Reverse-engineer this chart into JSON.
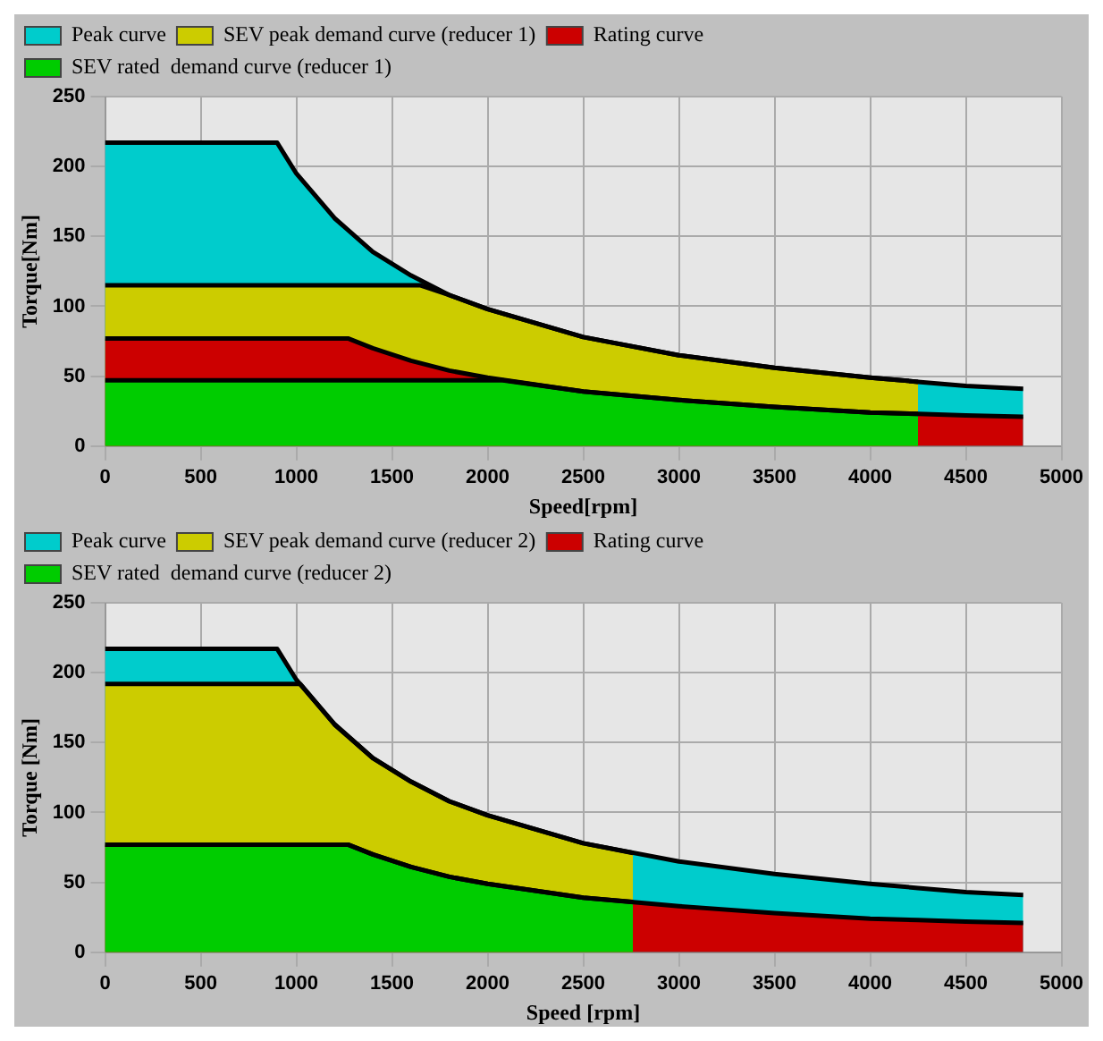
{
  "chart_data": [
    {
      "type": "area",
      "xlabel": "Speed[rpm]",
      "ylabel": "Torque[Nm]",
      "xlim": [
        0,
        5000
      ],
      "ylim": [
        0,
        250
      ],
      "xticks": [
        0,
        500,
        1000,
        1500,
        2000,
        2500,
        3000,
        3500,
        4000,
        4500,
        5000
      ],
      "yticks": [
        0,
        50,
        100,
        150,
        200,
        250
      ],
      "grid": true,
      "legend": "top left",
      "series": [
        {
          "name": "Peak curve",
          "color": "#00cccc",
          "x": [
            0,
            900,
            1000,
            1200,
            1400,
            1600,
            1800,
            2000,
            2500,
            3000,
            3500,
            4000,
            4250,
            4500,
            4800
          ],
          "values": [
            217,
            217,
            195,
            163,
            139,
            122,
            108,
            98,
            78,
            65,
            56,
            49,
            46,
            43,
            41
          ]
        },
        {
          "name": "SEV peak demand curve (reducer 1)",
          "color": "#cccc00",
          "x": [
            0,
            1650,
            1800,
            2000,
            2500,
            3000,
            3500,
            4000,
            4250
          ],
          "values": [
            115,
            115,
            108,
            98,
            78,
            65,
            56,
            49,
            46
          ]
        },
        {
          "name": "Rating curve",
          "color": "#cc0000",
          "x": [
            0,
            1270,
            1400,
            1600,
            1800,
            2000,
            2500,
            3000,
            3500,
            4000,
            4250,
            4500,
            4800
          ],
          "values": [
            77,
            77,
            70,
            61,
            54,
            49,
            39,
            33,
            28,
            24,
            23,
            22,
            21
          ]
        },
        {
          "name": "SEV rated  demand curve (reducer 1)",
          "color": "#00cc00",
          "x": [
            0,
            2080,
            2500,
            3000,
            3500,
            4000,
            4250
          ],
          "values": [
            47,
            47,
            39,
            33,
            28,
            24,
            23
          ]
        }
      ]
    },
    {
      "type": "area",
      "xlabel": "Speed [rpm]",
      "ylabel": "Torque [Nm]",
      "xlim": [
        0,
        5000
      ],
      "ylim": [
        0,
        250
      ],
      "xticks": [
        0,
        500,
        1000,
        1500,
        2000,
        2500,
        3000,
        3500,
        4000,
        4500,
        5000
      ],
      "yticks": [
        0,
        50,
        100,
        150,
        200,
        250
      ],
      "grid": true,
      "legend": "top left",
      "series": [
        {
          "name": "Peak curve",
          "color": "#00cccc",
          "x": [
            0,
            900,
            1000,
            1200,
            1400,
            1600,
            1800,
            2000,
            2500,
            3000,
            3500,
            4000,
            4250,
            4500,
            4800
          ],
          "values": [
            217,
            217,
            195,
            163,
            139,
            122,
            108,
            98,
            78,
            65,
            56,
            49,
            46,
            43,
            41
          ]
        },
        {
          "name": "SEV peak demand curve (reducer 2)",
          "color": "#cccc00",
          "x": [
            0,
            1020,
            1200,
            1400,
            1600,
            1800,
            2000,
            2500,
            2760
          ],
          "values": [
            192,
            192,
            163,
            139,
            122,
            108,
            98,
            78,
            71
          ]
        },
        {
          "name": "Rating curve",
          "color": "#cc0000",
          "x": [
            0,
            1270,
            1400,
            1600,
            1800,
            2000,
            2500,
            3000,
            3500,
            4000,
            4250,
            4500,
            4800
          ],
          "values": [
            77,
            77,
            70,
            61,
            54,
            49,
            39,
            33,
            28,
            24,
            23,
            22,
            21
          ]
        },
        {
          "name": "SEV rated  demand curve (reducer 2)",
          "color": "#00cc00",
          "x": [
            0,
            1270,
            1400,
            1600,
            1800,
            2000,
            2500,
            2760
          ],
          "values": [
            77,
            77,
            70,
            61,
            54,
            49,
            39,
            36
          ]
        }
      ]
    }
  ]
}
